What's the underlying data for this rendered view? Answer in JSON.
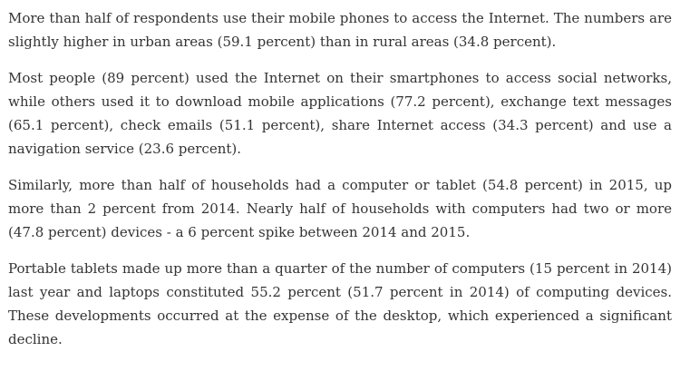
{
  "article": {
    "paragraphs": [
      "More than half of respondents use their mobile phones to access the Internet. The numbers are slightly higher in urban areas (59.1 percent) than in rural areas (34.8 percent).",
      "Most people (89 percent) used the Internet on their smartphones to access social networks, while others used it to download mobile applications (77.2 percent), exchange text messages (65.1 percent), check emails (51.1 percent), share Internet access (34.3 percent) and use a navigation service (23.6 percent).",
      "Similarly, more than half of households had a computer or tablet (54.8 percent) in 2015, up more than 2 percent from 2014. Nearly half of households with computers had two or more (47.8 percent) devices - a 6 percent spike between 2014 and 2015.",
      "Portable tablets made up more than a quarter of the number of computers (15 percent in 2014) last year and laptops constituted 55.2 percent (51.7 percent in 2014) of computing devices. These developments occurred at the expense of the desktop, which experienced a significant decline."
    ]
  }
}
